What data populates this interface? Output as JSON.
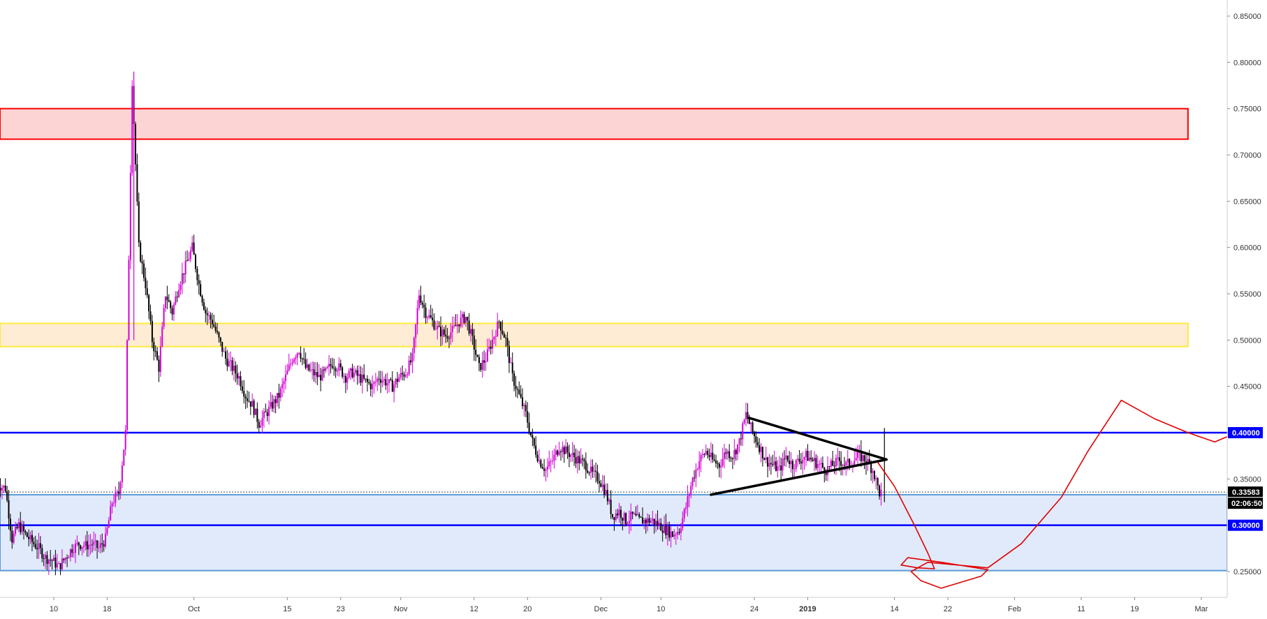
{
  "chart_data": {
    "type": "candlestick",
    "y_axis": {
      "range": [
        0.225,
        0.86
      ],
      "ticks": [
        "0.25000",
        "0.35000",
        "0.40000",
        "0.45000",
        "0.50000",
        "0.55000",
        "0.60000",
        "0.65000",
        "0.70000",
        "0.75000",
        "0.80000",
        "0.85000"
      ],
      "tick_values": [
        0.25,
        0.35,
        0.4,
        0.45,
        0.5,
        0.55,
        0.6,
        0.65,
        0.7,
        0.75,
        0.8,
        0.85
      ]
    },
    "x_axis": {
      "tick_labels": [
        {
          "label": "10",
          "day": 10,
          "bold": false
        },
        {
          "label": "18",
          "day": 18,
          "bold": false
        },
        {
          "label": "Oct",
          "day": 31,
          "bold": false
        },
        {
          "label": "15",
          "day": 45,
          "bold": false
        },
        {
          "label": "23",
          "day": 53,
          "bold": false
        },
        {
          "label": "Nov",
          "day": 62,
          "bold": false
        },
        {
          "label": "12",
          "day": 73,
          "bold": false
        },
        {
          "label": "20",
          "day": 81,
          "bold": false
        },
        {
          "label": "Dec",
          "day": 92,
          "bold": false
        },
        {
          "label": "10",
          "day": 101,
          "bold": false
        },
        {
          "label": "24",
          "day": 115,
          "bold": false
        },
        {
          "label": "2019",
          "day": 123,
          "bold": true
        },
        {
          "label": "14",
          "day": 136,
          "bold": false
        },
        {
          "label": "22",
          "day": 144,
          "bold": false
        },
        {
          "label": "Feb",
          "day": 154,
          "bold": false
        },
        {
          "label": "11",
          "day": 164,
          "bold": false
        },
        {
          "label": "19",
          "day": 172,
          "bold": false
        },
        {
          "label": "Mar",
          "day": 182,
          "bold": false
        }
      ],
      "day_range": [
        1.5,
        188
      ]
    },
    "price_path": [
      [
        1.5,
        0.345
      ],
      [
        3,
        0.34
      ],
      [
        4,
        0.285
      ],
      [
        5,
        0.3
      ],
      [
        6,
        0.29
      ],
      [
        7,
        0.282
      ],
      [
        8,
        0.275
      ],
      [
        9,
        0.265
      ],
      [
        10,
        0.262
      ],
      [
        11,
        0.255
      ],
      [
        12,
        0.265
      ],
      [
        13,
        0.275
      ],
      [
        14,
        0.28
      ],
      [
        15,
        0.278
      ],
      [
        16,
        0.28
      ],
      [
        17,
        0.275
      ],
      [
        18,
        0.285
      ],
      [
        19,
        0.325
      ],
      [
        20,
        0.335
      ],
      [
        21,
        0.4
      ],
      [
        22,
        0.78
      ],
      [
        23,
        0.6
      ],
      [
        24,
        0.56
      ],
      [
        25,
        0.5
      ],
      [
        26,
        0.47
      ],
      [
        27,
        0.55
      ],
      [
        28,
        0.53
      ],
      [
        29,
        0.56
      ],
      [
        30,
        0.58
      ],
      [
        31,
        0.6
      ],
      [
        32,
        0.56
      ],
      [
        33,
        0.53
      ],
      [
        34,
        0.52
      ],
      [
        35,
        0.5
      ],
      [
        36,
        0.48
      ],
      [
        37,
        0.47
      ],
      [
        38,
        0.46
      ],
      [
        39,
        0.44
      ],
      [
        40,
        0.43
      ],
      [
        41,
        0.41
      ],
      [
        42,
        0.42
      ],
      [
        43,
        0.43
      ],
      [
        44,
        0.44
      ],
      [
        45,
        0.46
      ],
      [
        46,
        0.48
      ],
      [
        47,
        0.49
      ],
      [
        48,
        0.47
      ],
      [
        49,
        0.465
      ],
      [
        50,
        0.46
      ],
      [
        51,
        0.465
      ],
      [
        52,
        0.475
      ],
      [
        53,
        0.47
      ],
      [
        54,
        0.46
      ],
      [
        55,
        0.465
      ],
      [
        56,
        0.46
      ],
      [
        57,
        0.455
      ],
      [
        58,
        0.45
      ],
      [
        59,
        0.46
      ],
      [
        60,
        0.455
      ],
      [
        61,
        0.45
      ],
      [
        62,
        0.46
      ],
      [
        63,
        0.465
      ],
      [
        64,
        0.48
      ],
      [
        65,
        0.55
      ],
      [
        66,
        0.53
      ],
      [
        67,
        0.52
      ],
      [
        68,
        0.51
      ],
      [
        69,
        0.505
      ],
      [
        70,
        0.51
      ],
      [
        71,
        0.52
      ],
      [
        72,
        0.525
      ],
      [
        73,
        0.5
      ],
      [
        74,
        0.47
      ],
      [
        75,
        0.48
      ],
      [
        76,
        0.5
      ],
      [
        77,
        0.52
      ],
      [
        78,
        0.5
      ],
      [
        79,
        0.46
      ],
      [
        80,
        0.44
      ],
      [
        81,
        0.42
      ],
      [
        82,
        0.39
      ],
      [
        83,
        0.37
      ],
      [
        84,
        0.36
      ],
      [
        85,
        0.37
      ],
      [
        86,
        0.385
      ],
      [
        87,
        0.38
      ],
      [
        88,
        0.375
      ],
      [
        89,
        0.37
      ],
      [
        90,
        0.365
      ],
      [
        91,
        0.355
      ],
      [
        92,
        0.35
      ],
      [
        93,
        0.335
      ],
      [
        94,
        0.31
      ],
      [
        95,
        0.315
      ],
      [
        96,
        0.305
      ],
      [
        97,
        0.31
      ],
      [
        98,
        0.305
      ],
      [
        99,
        0.305
      ],
      [
        100,
        0.305
      ],
      [
        101,
        0.3
      ],
      [
        102,
        0.295
      ],
      [
        103,
        0.29
      ],
      [
        104,
        0.295
      ],
      [
        105,
        0.32
      ],
      [
        106,
        0.35
      ],
      [
        107,
        0.37
      ],
      [
        108,
        0.38
      ],
      [
        109,
        0.37
      ],
      [
        110,
        0.365
      ],
      [
        111,
        0.38
      ],
      [
        112,
        0.375
      ],
      [
        113,
        0.39
      ],
      [
        114,
        0.42
      ],
      [
        115,
        0.4
      ],
      [
        116,
        0.385
      ],
      [
        117,
        0.37
      ],
      [
        118,
        0.365
      ],
      [
        119,
        0.36
      ],
      [
        120,
        0.375
      ],
      [
        121,
        0.365
      ],
      [
        122,
        0.37
      ],
      [
        123,
        0.375
      ],
      [
        124,
        0.37
      ],
      [
        125,
        0.365
      ],
      [
        126,
        0.36
      ],
      [
        127,
        0.365
      ],
      [
        128,
        0.37
      ],
      [
        129,
        0.365
      ],
      [
        130,
        0.37
      ],
      [
        131,
        0.375
      ],
      [
        132,
        0.37
      ],
      [
        133,
        0.36
      ],
      [
        134,
        0.335
      ]
    ],
    "candle_spacing_days": 0.25,
    "zones": [
      {
        "name": "red-resistance-zone",
        "top": 0.75,
        "bottom": 0.717,
        "fill": "#fcd4d4",
        "stroke": "#ff0000",
        "day_end": 180
      },
      {
        "name": "yellow-resistance-zone",
        "top": 0.518,
        "bottom": 0.493,
        "fill": "#feecd4",
        "stroke": "#ffeb3b",
        "day_end": 180
      },
      {
        "name": "blue-support-zone",
        "top": 0.333,
        "bottom": 0.251,
        "fill": "#e0eafb",
        "stroke": "#5b9bd5",
        "day_end": 188
      }
    ],
    "levels": [
      {
        "name": "level-0-40",
        "value": 0.4,
        "color": "#0000ff",
        "label": "0.40000"
      },
      {
        "name": "level-0-30",
        "value": 0.3,
        "color": "#0000ff",
        "label": "0.30000"
      }
    ],
    "current_price": {
      "value": 0.33583,
      "label": "0.33583",
      "countdown": "02:06:50"
    },
    "triangle": {
      "upper": [
        [
          114.2,
          0.416
        ],
        [
          134.8,
          0.371
        ]
      ],
      "lower": [
        [
          108.5,
          0.333
        ],
        [
          134.8,
          0.371
        ]
      ]
    },
    "projection": [
      [
        133.5,
        0.368
      ],
      [
        136,
        0.342
      ],
      [
        139,
        0.3
      ],
      [
        141,
        0.27
      ],
      [
        142,
        0.253
      ],
      [
        139.5,
        0.254
      ],
      [
        137,
        0.257
      ],
      [
        138,
        0.265
      ],
      [
        143,
        0.26
      ],
      [
        150,
        0.252
      ],
      [
        149,
        0.245
      ],
      [
        143,
        0.232
      ],
      [
        140,
        0.24
      ],
      [
        138.5,
        0.25
      ],
      [
        141,
        0.26
      ],
      [
        150,
        0.254
      ],
      [
        155,
        0.28
      ],
      [
        161,
        0.33
      ],
      [
        165,
        0.38
      ],
      [
        170,
        0.435
      ],
      [
        175,
        0.415
      ],
      [
        180,
        0.4
      ],
      [
        184,
        0.39
      ],
      [
        187,
        0.399
      ]
    ],
    "colors": {
      "candle_up": "#d400d4",
      "candle_down": "#000000",
      "projection": "#e00000",
      "triangle": "#000000",
      "axis_text": "#333333",
      "badge_bg": "#000000"
    }
  }
}
